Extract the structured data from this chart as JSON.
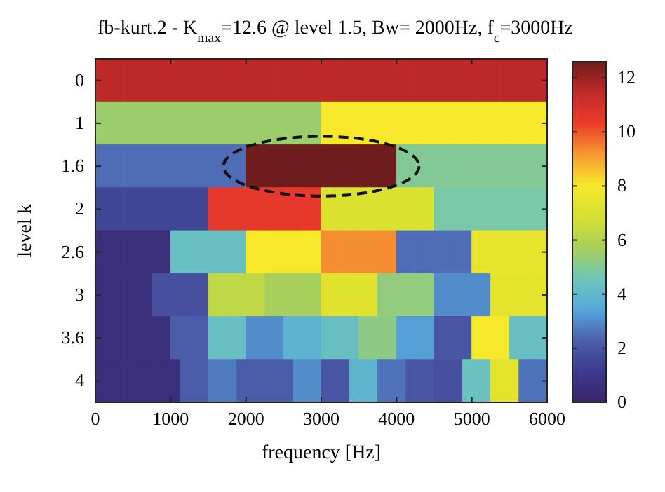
{
  "chart_data": {
    "type": "heatmap",
    "title": "fb-kurt.2 - K$_{max}$=12.6 @ level 1.5, Bw= 2000Hz, f$_{c}$=3000Hz",
    "xlabel": "frequency [Hz]",
    "ylabel": "level k",
    "xlim": [
      0,
      6000
    ],
    "xticks": [
      0,
      1000,
      2000,
      3000,
      4000,
      5000,
      6000
    ],
    "x": [
      62.5,
      187.5,
      312.5,
      437.5,
      562.5,
      687.5,
      812.5,
      937.5,
      1062.5,
      1187.5,
      1312.5,
      1437.5,
      1562.5,
      1687.5,
      1812.5,
      1937.5,
      2062.5,
      2187.5,
      2312.5,
      2437.5,
      2562.5,
      2687.5,
      2812.5,
      2937.5,
      3062.5,
      3187.5,
      3312.5,
      3437.5,
      3562.5,
      3687.5,
      3812.5,
      3937.5,
      4062.5,
      4187.5,
      4312.5,
      4437.5,
      4562.5,
      4687.5,
      4812.5,
      4937.5,
      5062.5,
      5187.5,
      5312.5,
      5437.5,
      5562.5,
      5687.5,
      5812.5,
      5937.5
    ],
    "y_categories": [
      "0",
      "1",
      "1.6",
      "2",
      "2.6",
      "3",
      "3.6",
      "4"
    ],
    "cells": [
      [
        11.5,
        11.5,
        11.5,
        11.5,
        11.5,
        11.5,
        11.5,
        11.5,
        11.5,
        11.5,
        11.5,
        11.5,
        11.5,
        11.5,
        11.5,
        11.5,
        11.5,
        11.5,
        11.5,
        11.5,
        11.5,
        11.5,
        11.5,
        11.5,
        11.5,
        11.5,
        11.5,
        11.5,
        11.5,
        11.5,
        11.5,
        11.5,
        11.5,
        11.5,
        11.5,
        11.5,
        11.5,
        11.5,
        11.5,
        11.5,
        11.5,
        11.5,
        11.5,
        11.5,
        11.5,
        11.5,
        11.5,
        11.5
      ],
      [
        5.5,
        5.5,
        5.5,
        5.5,
        5.5,
        5.5,
        5.5,
        5.5,
        5.5,
        5.5,
        5.5,
        5.5,
        5.5,
        5.5,
        5.5,
        5.5,
        5.5,
        5.5,
        5.5,
        5.5,
        5.5,
        5.5,
        5.5,
        5.5,
        8,
        8,
        8,
        8,
        8,
        8,
        8,
        8,
        8,
        8,
        8,
        8,
        8,
        8,
        8,
        8,
        8,
        8,
        8,
        8,
        8,
        8,
        8,
        8
      ],
      [
        2.5,
        2.5,
        2.5,
        2.5,
        2.5,
        2.5,
        2.5,
        2.5,
        2.5,
        2.5,
        2.5,
        2.5,
        2.5,
        2.5,
        2.5,
        2.5,
        12.6,
        12.6,
        12.6,
        12.6,
        12.6,
        12.6,
        12.6,
        12.6,
        12.6,
        12.6,
        12.6,
        12.6,
        12.6,
        12.6,
        12.6,
        12.6,
        5,
        5,
        5,
        5,
        5,
        5,
        5,
        5,
        5,
        5,
        5,
        5,
        5,
        5,
        5,
        5
      ],
      [
        1.5,
        1.5,
        1.5,
        1.5,
        1.5,
        1.5,
        1.5,
        1.5,
        1.5,
        1.5,
        1.5,
        1.5,
        10.5,
        10.5,
        10.5,
        10.5,
        10.5,
        10.5,
        10.5,
        10.5,
        10.5,
        10.5,
        10.5,
        10.5,
        7,
        7,
        7,
        7,
        7,
        7,
        7,
        7,
        7,
        7,
        7,
        7,
        4.8,
        4.8,
        4.8,
        4.8,
        4.8,
        4.8,
        4.8,
        4.8,
        4.8,
        4.8,
        4.8,
        4.8
      ],
      [
        0.5,
        0.5,
        0.5,
        0.5,
        0.5,
        0.5,
        0.5,
        0.5,
        4.3,
        4.3,
        4.3,
        4.3,
        4.3,
        4.3,
        4.3,
        4.3,
        8,
        8,
        8,
        8,
        8,
        8,
        8,
        8,
        9.3,
        9.3,
        9.3,
        9.3,
        9.3,
        9.3,
        9.3,
        9.3,
        2.5,
        2.5,
        2.5,
        2.5,
        2.5,
        2.5,
        2.5,
        2.5,
        7.5,
        7.5,
        7.5,
        7.5,
        7.5,
        7.5,
        7.5,
        7.5
      ],
      [
        0.5,
        0.5,
        0.5,
        0.5,
        0.5,
        0.5,
        1.8,
        1.8,
        1.8,
        1.8,
        1.8,
        1.8,
        6.3,
        6.3,
        6.3,
        6.3,
        6.3,
        6.3,
        5.7,
        5.7,
        5.7,
        5.7,
        5.7,
        5.7,
        7.2,
        7.2,
        7.2,
        7.2,
        7.2,
        7.2,
        5.3,
        5.3,
        5.3,
        5.3,
        5.3,
        5.3,
        3,
        3,
        3,
        3,
        3,
        3,
        7.3,
        7.3,
        7.3,
        7.3,
        7.3,
        7.3
      ],
      [
        0.5,
        0.5,
        0.5,
        0.5,
        0.5,
        0.5,
        0.5,
        0.5,
        2.2,
        2.2,
        2.2,
        2.2,
        4.3,
        4.3,
        4.3,
        4.3,
        3,
        3,
        3,
        3,
        3.8,
        3.8,
        3.8,
        3.8,
        4.3,
        4.3,
        4.3,
        4.3,
        5.2,
        5.2,
        5.2,
        5.2,
        3.3,
        3.3,
        3.3,
        3.3,
        2,
        2,
        2,
        2,
        8,
        8,
        8,
        8,
        4.3,
        4.3,
        4.3,
        4.3
      ],
      [
        0.5,
        0.5,
        0.5,
        0.5,
        0.5,
        0.5,
        0.5,
        0.5,
        0.5,
        2.2,
        2.2,
        2.2,
        2.7,
        2.7,
        2.7,
        2.2,
        2.2,
        2.2,
        2.2,
        2.2,
        2.2,
        3,
        3,
        3,
        2,
        2,
        2,
        3.9,
        3.9,
        3.9,
        2.6,
        2.6,
        2.6,
        2,
        2,
        2,
        1.8,
        1.8,
        1.8,
        4.4,
        4.4,
        4.4,
        7.3,
        7.3,
        7.3,
        2.6,
        2.6,
        2.6
      ]
    ],
    "clim": [
      0,
      12.6
    ],
    "cticks": [
      0,
      2,
      4,
      6,
      8,
      10,
      12
    ]
  }
}
